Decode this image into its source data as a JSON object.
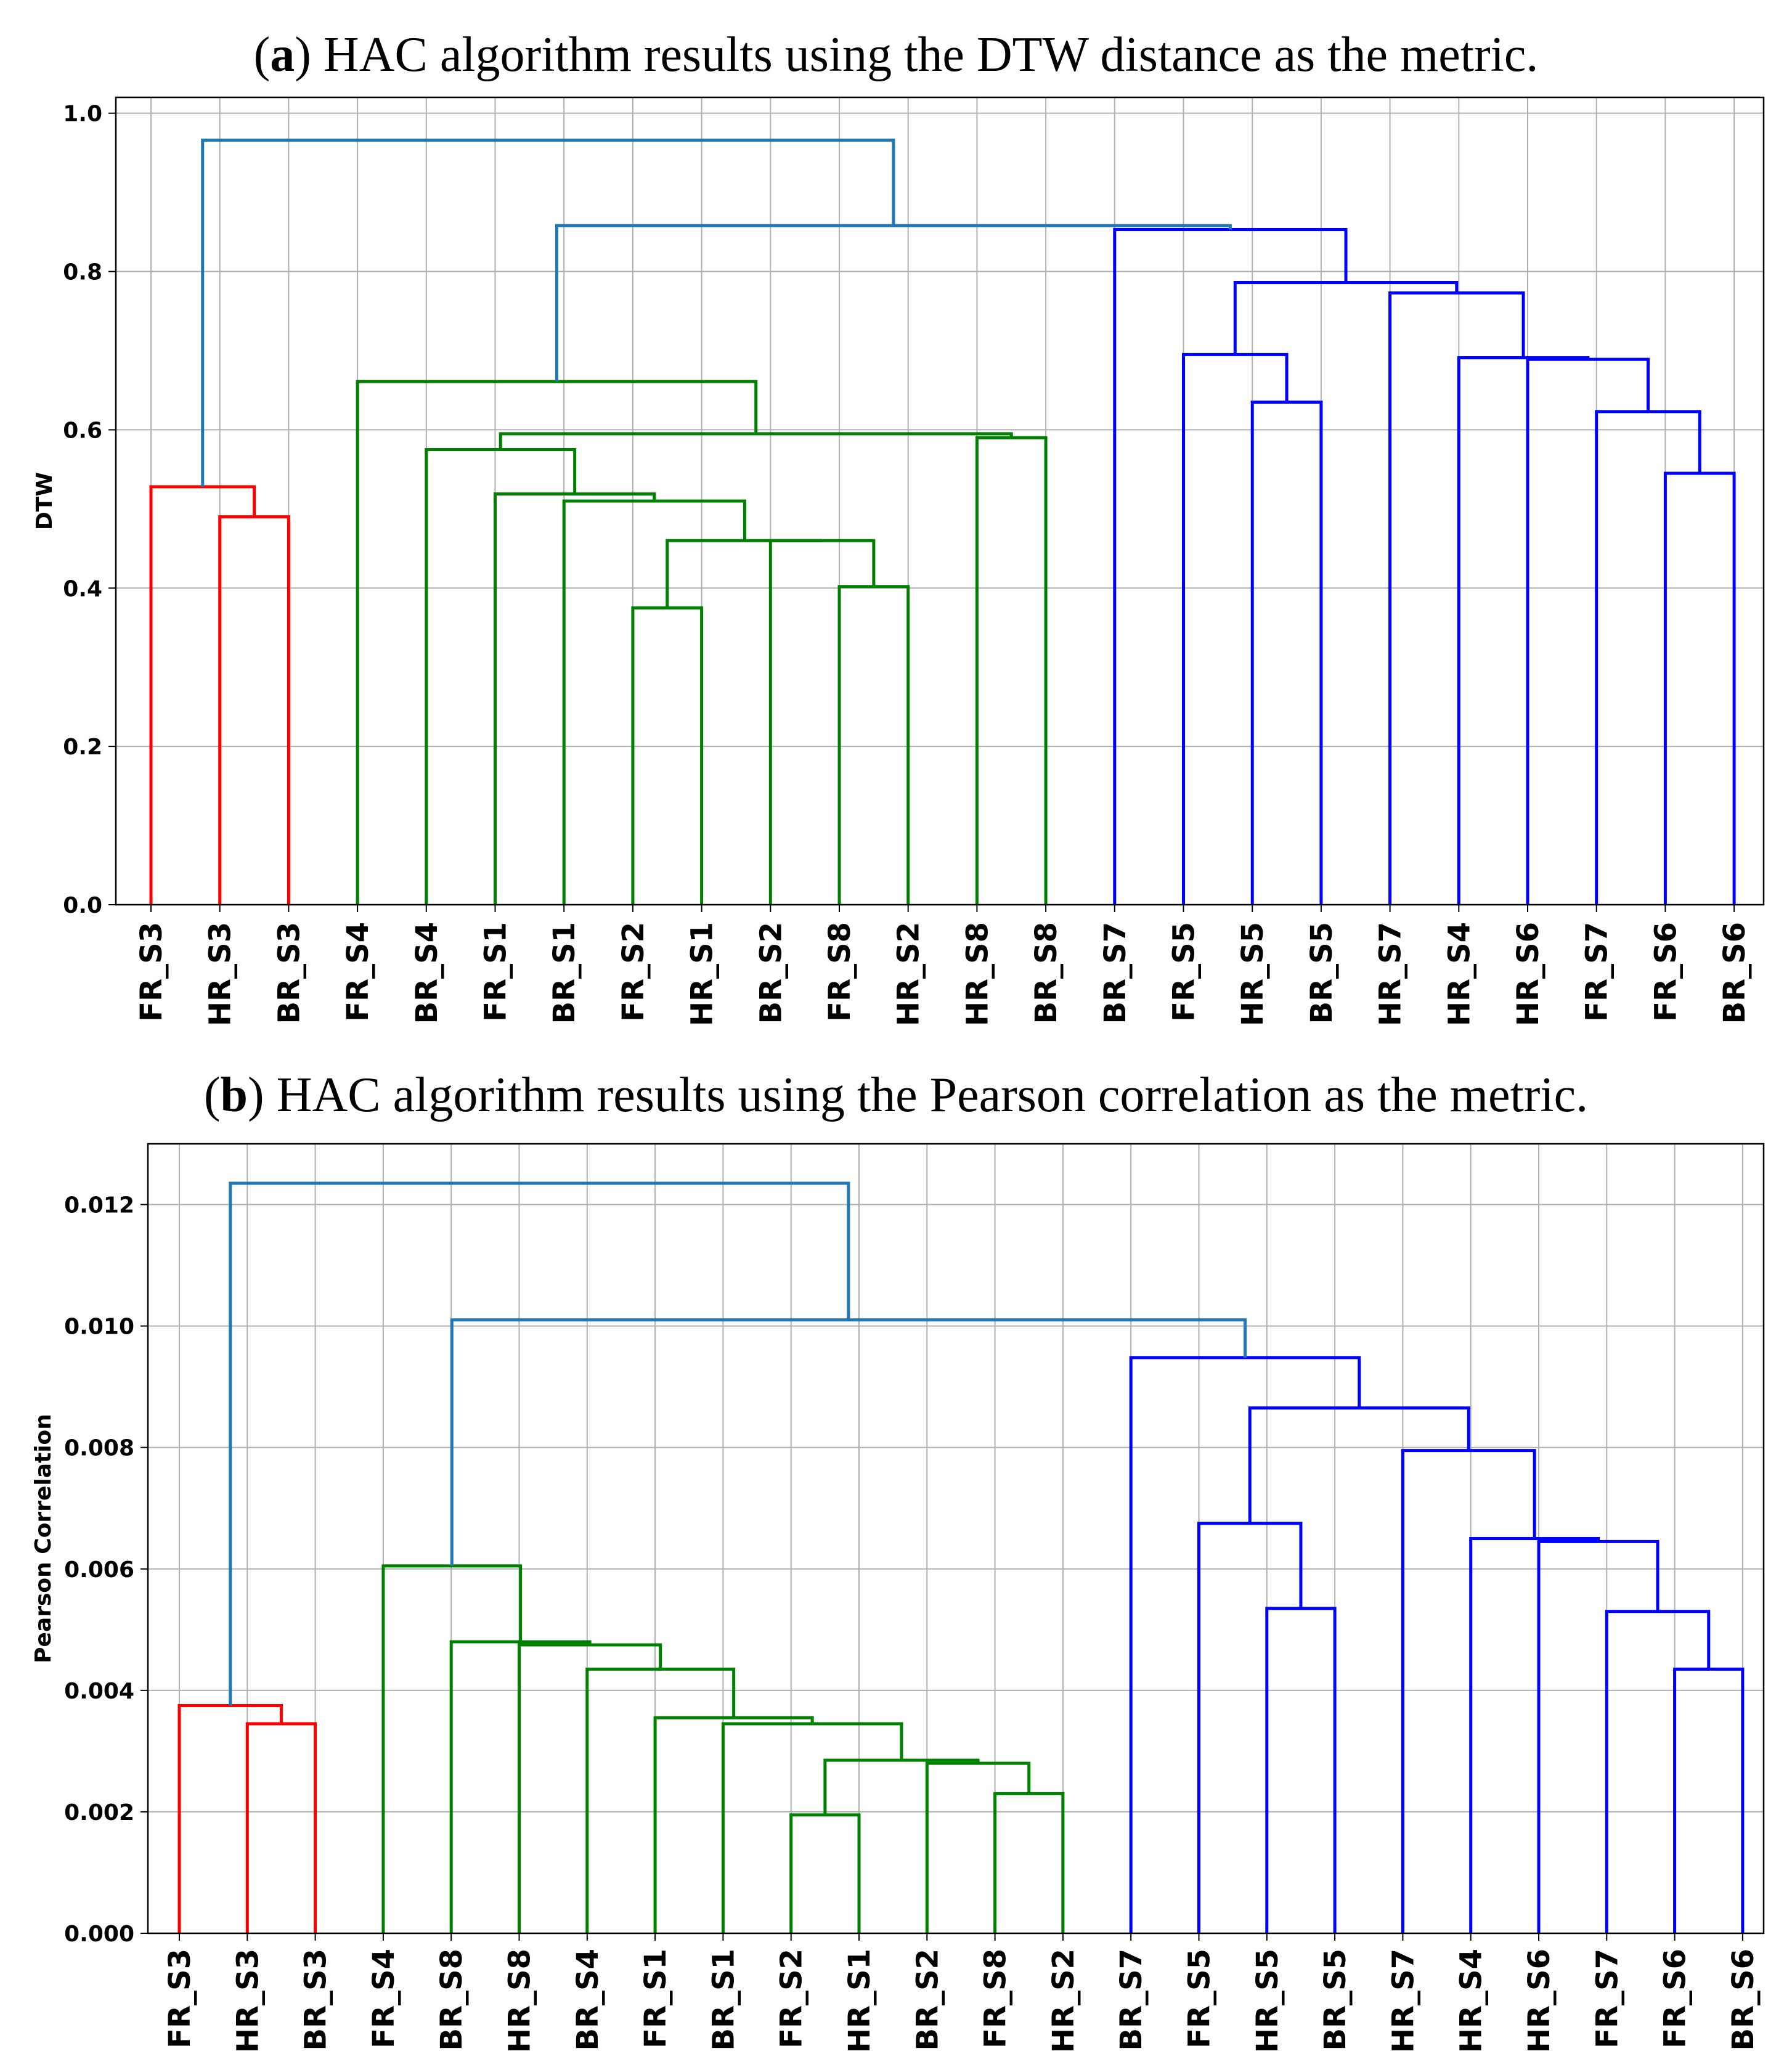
{
  "chart_data": [
    {
      "type": "dendrogram",
      "panel": "a",
      "title": "HAC algorithm results using the DTW distance as the metric.",
      "ylabel": "DTW",
      "xlabel": "",
      "ylim": [
        0,
        1.02
      ],
      "yticks": [
        0.0,
        0.2,
        0.4,
        0.6,
        0.8,
        1.0
      ],
      "ytick_labels": [
        "0.0",
        "0.2",
        "0.4",
        "0.6",
        "0.8",
        "1.0"
      ],
      "grid": true,
      "leaves": [
        "FR_S3",
        "HR_S3",
        "BR_S3",
        "FR_S4",
        "BR_S4",
        "FR_S1",
        "BR_S1",
        "FR_S2",
        "HR_S1",
        "BR_S2",
        "FR_S8",
        "HR_S2",
        "HR_S8",
        "BR_S8",
        "BR_S7",
        "FR_S5",
        "HR_S5",
        "BR_S5",
        "HR_S7",
        "HR_S4",
        "HR_S6",
        "FR_S7",
        "FR_S6",
        "BR_S6"
      ],
      "merges": [
        {
          "a": "L1",
          "b": "L2",
          "h": 0.49,
          "color": "#ff0000"
        },
        {
          "a": "L0",
          "b": "M0",
          "h": 0.528,
          "color": "#ff0000"
        },
        {
          "a": "L7",
          "b": "L8",
          "h": 0.375,
          "color": "#008000"
        },
        {
          "a": "L10",
          "b": "L11",
          "h": 0.402,
          "color": "#008000"
        },
        {
          "a": "L9",
          "b": "M3",
          "h": 0.46,
          "color": "#008000"
        },
        {
          "a": "M2",
          "b": "M4",
          "h": 0.46,
          "color": "#008000"
        },
        {
          "a": "L6",
          "b": "M5",
          "h": 0.51,
          "color": "#008000"
        },
        {
          "a": "L5",
          "b": "M6",
          "h": 0.519,
          "color": "#008000"
        },
        {
          "a": "L4",
          "b": "M7",
          "h": 0.575,
          "color": "#008000"
        },
        {
          "a": "L12",
          "b": "L13",
          "h": 0.59,
          "color": "#008000"
        },
        {
          "a": "M8",
          "b": "M9",
          "h": 0.595,
          "color": "#008000"
        },
        {
          "a": "L3",
          "b": "M10",
          "h": 0.661,
          "color": "#008000"
        },
        {
          "a": "L16",
          "b": "L17",
          "h": 0.635,
          "color": "#0000ff"
        },
        {
          "a": "L15",
          "b": "M12",
          "h": 0.695,
          "color": "#0000ff"
        },
        {
          "a": "L22",
          "b": "L23",
          "h": 0.545,
          "color": "#0000ff"
        },
        {
          "a": "L21",
          "b": "M14",
          "h": 0.623,
          "color": "#0000ff"
        },
        {
          "a": "L20",
          "b": "M15",
          "h": 0.689,
          "color": "#0000ff"
        },
        {
          "a": "L19",
          "b": "M16",
          "h": 0.691,
          "color": "#0000ff"
        },
        {
          "a": "L18",
          "b": "M17",
          "h": 0.773,
          "color": "#0000ff"
        },
        {
          "a": "M13",
          "b": "M18",
          "h": 0.786,
          "color": "#0000ff"
        },
        {
          "a": "L14",
          "b": "M19",
          "h": 0.853,
          "color": "#0000ff"
        },
        {
          "a": "M11",
          "b": "M20",
          "h": 0.858,
          "color": "#1f77b4"
        },
        {
          "a": "M1",
          "b": "M21",
          "h": 0.966,
          "color": "#1f77b4"
        }
      ]
    },
    {
      "type": "dendrogram",
      "panel": "b",
      "title": "HAC algorithm results using the Pearson correlation as the metric.",
      "ylabel": "Pearson Correlation",
      "xlabel": "",
      "ylim": [
        0,
        0.013
      ],
      "yticks": [
        0.0,
        0.002,
        0.004,
        0.006,
        0.008,
        0.01,
        0.012
      ],
      "ytick_labels": [
        "0.000",
        "0.002",
        "0.004",
        "0.006",
        "0.008",
        "0.010",
        "0.012"
      ],
      "grid": true,
      "leaves": [
        "FR_S3",
        "HR_S3",
        "BR_S3",
        "FR_S4",
        "BR_S8",
        "HR_S8",
        "BR_S4",
        "FR_S1",
        "BR_S1",
        "FR_S2",
        "HR_S1",
        "BR_S2",
        "FR_S8",
        "HR_S2",
        "BR_S7",
        "FR_S5",
        "HR_S5",
        "BR_S5",
        "HR_S7",
        "HR_S4",
        "HR_S6",
        "FR_S7",
        "FR_S6",
        "BR_S6"
      ],
      "merges": [
        {
          "a": "L1",
          "b": "L2",
          "h": 0.00345,
          "color": "#ff0000"
        },
        {
          "a": "L0",
          "b": "M0",
          "h": 0.00375,
          "color": "#ff0000"
        },
        {
          "a": "L9",
          "b": "L10",
          "h": 0.00195,
          "color": "#008000"
        },
        {
          "a": "L12",
          "b": "L13",
          "h": 0.0023,
          "color": "#008000"
        },
        {
          "a": "L11",
          "b": "M3",
          "h": 0.0028,
          "color": "#008000"
        },
        {
          "a": "M2",
          "b": "M4",
          "h": 0.00285,
          "color": "#008000"
        },
        {
          "a": "L8",
          "b": "M5",
          "h": 0.00345,
          "color": "#008000"
        },
        {
          "a": "L7",
          "b": "M6",
          "h": 0.00355,
          "color": "#008000"
        },
        {
          "a": "L6",
          "b": "M7",
          "h": 0.00435,
          "color": "#008000"
        },
        {
          "a": "L5",
          "b": "M8",
          "h": 0.00475,
          "color": "#008000"
        },
        {
          "a": "L4",
          "b": "M9",
          "h": 0.0048,
          "color": "#008000"
        },
        {
          "a": "L3",
          "b": "M10",
          "h": 0.00605,
          "color": "#008000"
        },
        {
          "a": "L16",
          "b": "L17",
          "h": 0.00535,
          "color": "#0000ff"
        },
        {
          "a": "L15",
          "b": "M12",
          "h": 0.00675,
          "color": "#0000ff"
        },
        {
          "a": "L22",
          "b": "L23",
          "h": 0.00435,
          "color": "#0000ff"
        },
        {
          "a": "L21",
          "b": "M14",
          "h": 0.0053,
          "color": "#0000ff"
        },
        {
          "a": "L20",
          "b": "M15",
          "h": 0.00645,
          "color": "#0000ff"
        },
        {
          "a": "L19",
          "b": "M16",
          "h": 0.0065,
          "color": "#0000ff"
        },
        {
          "a": "L18",
          "b": "M17",
          "h": 0.00795,
          "color": "#0000ff"
        },
        {
          "a": "M13",
          "b": "M18",
          "h": 0.00865,
          "color": "#0000ff"
        },
        {
          "a": "L14",
          "b": "M19",
          "h": 0.00948,
          "color": "#0000ff"
        },
        {
          "a": "M11",
          "b": "M20",
          "h": 0.0101,
          "color": "#1f77b4"
        },
        {
          "a": "M1",
          "b": "M21",
          "h": 0.01235,
          "color": "#1f77b4"
        }
      ]
    }
  ]
}
